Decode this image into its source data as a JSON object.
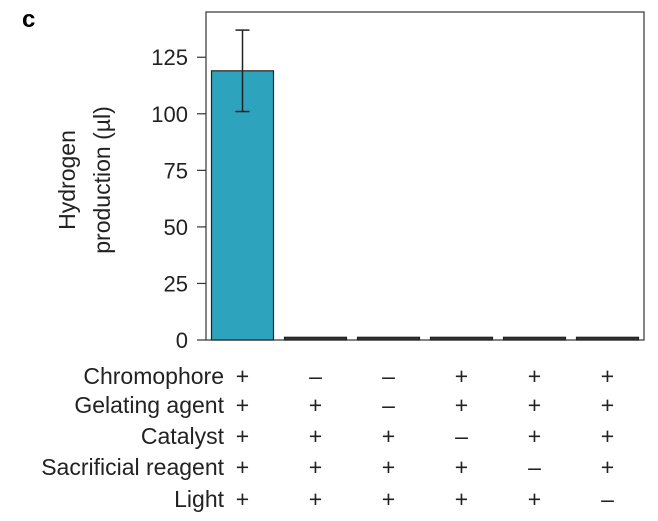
{
  "panel_label": "c",
  "chart_data": {
    "type": "bar",
    "ylabel": "Hydrogen production (µl)",
    "ylabel_lines": [
      "Hydrogen",
      "production (µl)"
    ],
    "ylim": [
      0,
      145
    ],
    "yticks": [
      0,
      25,
      50,
      75,
      100,
      125
    ],
    "grid": false,
    "values": [
      119,
      1.2,
      1.2,
      1.2,
      1.2,
      1.2
    ],
    "errors": [
      18,
      0,
      0,
      0,
      0,
      0
    ],
    "bar_colors": [
      "#2ea3bd",
      "#333333",
      "#333333",
      "#333333",
      "#333333",
      "#333333"
    ],
    "conditions": [
      {
        "label": "Chromophore",
        "marks": [
          "+",
          "–",
          "–",
          "+",
          "+",
          "+"
        ]
      },
      {
        "label": "Gelating agent",
        "marks": [
          "+",
          "+",
          "–",
          "+",
          "+",
          "+"
        ]
      },
      {
        "label": "Catalyst",
        "marks": [
          "+",
          "+",
          "+",
          "–",
          "+",
          "+"
        ]
      },
      {
        "label": "Sacrificial reagent",
        "marks": [
          "+",
          "+",
          "+",
          "+",
          "–",
          "+"
        ]
      },
      {
        "label": "Light",
        "marks": [
          "+",
          "+",
          "+",
          "+",
          "+",
          "–"
        ]
      }
    ]
  }
}
